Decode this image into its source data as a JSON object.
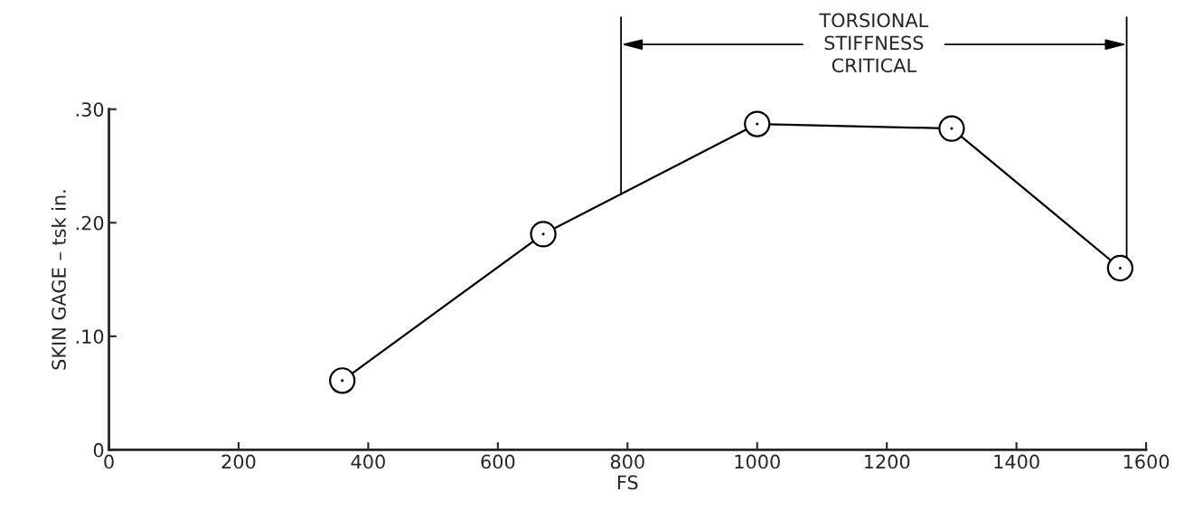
{
  "chart_data": {
    "type": "line",
    "xlabel": "FS",
    "ylabel": "SKIN GAGE – tsk in.",
    "x": [
      360,
      670,
      1000,
      1300,
      1560
    ],
    "series": [
      {
        "color": "#000000",
        "values": [
          0.061,
          0.19,
          0.287,
          0.283,
          0.16
        ]
      }
    ],
    "marker": "circle",
    "line_style": "solid",
    "grid": false,
    "xlim": [
      0,
      1600
    ],
    "xticks": [
      0,
      200,
      400,
      600,
      800,
      1000,
      1200,
      1400,
      1600
    ],
    "ylim": [
      0,
      0.3
    ],
    "yticks": [
      {
        "value": 0,
        "label": "0"
      },
      {
        "value": 0.1,
        "label": ".10"
      },
      {
        "value": 0.2,
        "label": ".20"
      },
      {
        "value": 0.3,
        "label": ".30"
      }
    ],
    "ref_lines": [
      {
        "axis": "x",
        "value": 790
      },
      {
        "axis": "x",
        "value": 1570
      }
    ],
    "annotations": [
      "TORSIONAL\nSTIFFNESS\nCRITICAL"
    ]
  }
}
